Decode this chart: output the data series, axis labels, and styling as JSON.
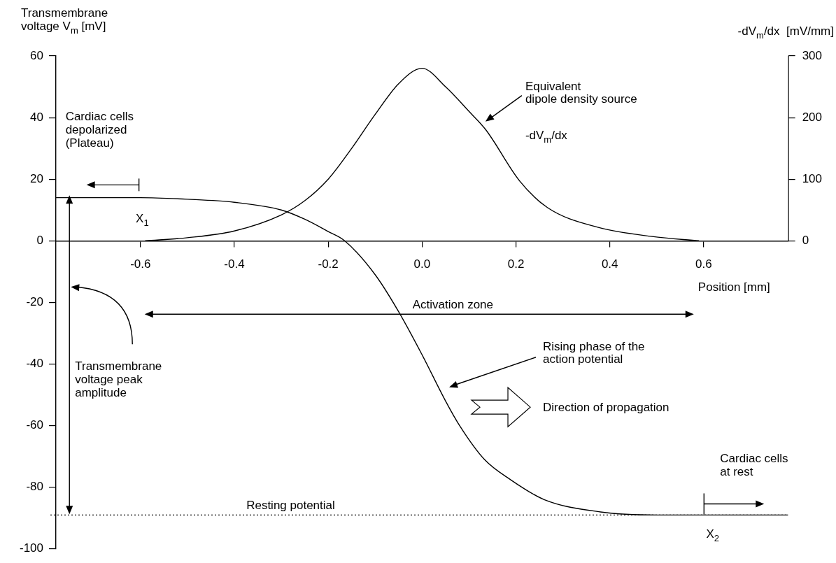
{
  "chart_data": {
    "type": "line",
    "ylabel": "Transmembrane\nvoltage V$_{m}$ [mV]",
    "y2label": "-dV$_{m}$/dx  [mV/mm]",
    "xlabel": "Position [mm]",
    "xlim": [
      -0.78,
      0.78
    ],
    "xticks": [
      -0.6,
      -0.4,
      -0.2,
      {
        "value": 0,
        "label": "0.0"
      },
      0.2,
      0.4,
      0.6
    ],
    "ylim": [
      -100,
      60
    ],
    "yticks": [
      60,
      40,
      20,
      0,
      -20,
      -40,
      -60,
      -80,
      -100
    ],
    "y2lim": [
      -500,
      300
    ],
    "y2ticks": [
      0,
      100,
      200,
      300
    ],
    "series": [
      {
        "color": "#000000",
        "x": [
          -0.78,
          -0.6,
          -0.5,
          -0.4,
          -0.3,
          -0.25,
          -0.2,
          -0.165,
          -0.1,
          -0.05,
          0,
          0.05,
          0.08,
          0.133,
          0.188,
          0.26,
          0.38,
          0.5,
          0.6,
          0.78
        ],
        "values": [
          14,
          14,
          13.5,
          12.5,
          10,
          7,
          3,
          0,
          -11,
          -23,
          -37,
          -52,
          -60,
          -71,
          -77.5,
          -84,
          -88,
          -89,
          -89,
          -89
        ]
      },
      {
        "color": "#000000",
        "axis": "y2",
        "x": [
          -0.59,
          -0.5,
          -0.4,
          -0.3,
          -0.25,
          -0.2,
          -0.15,
          -0.1,
          -0.05,
          0,
          0.05,
          0.1,
          0.136,
          0.208,
          0.267,
          0.374,
          0.49,
          0.59
        ],
        "values": [
          0,
          5,
          16,
          42,
          65,
          100,
          150,
          205,
          255,
          280,
          250,
          210,
          180,
          97,
          54,
          22,
          7,
          0
        ]
      }
    ],
    "ref_lines": [
      {
        "axis": "y",
        "value": -89,
        "label": "Resting potential",
        "line_style": "dotted",
        "color": "#000000"
      }
    ],
    "annotations": [
      "Cardiac cells\ndepolarized\n(Plateau)",
      "X$_{1}$",
      "Equivalent\ndipole density source",
      "-dV$_{m}$/dx",
      "Activation zone",
      "Rising phase of the\naction potential",
      "Direction of propagation",
      "Transmembrane\nvoltage peak\namplitude",
      "Cardiac cells\nat rest",
      "X$_{2}$"
    ],
    "marker": "none",
    "line_style": "solid"
  }
}
